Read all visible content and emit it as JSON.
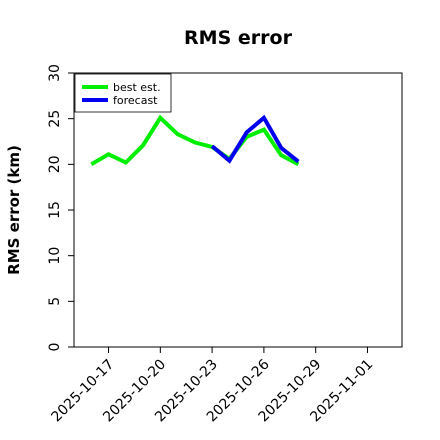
{
  "chart_data": {
    "type": "line",
    "title": "RMS error",
    "ylabel": "RMS error (km)",
    "xlabel": "",
    "ylim": [
      0,
      30
    ],
    "yticks": [
      0,
      5,
      10,
      15,
      20,
      25,
      30
    ],
    "xlim": [
      "2025-10-15",
      "2025-11-03"
    ],
    "x_tick_dates": [
      "2025-10-17",
      "2025-10-20",
      "2025-10-23",
      "2025-10-26",
      "2025-10-29",
      "2025-11-01"
    ],
    "x_tick_labels": [
      "2025-10-17",
      "2025-10-20",
      "2025-10-23",
      "2025-10-26",
      "2025-10-29",
      "2025-11-01"
    ],
    "x_tick_colors": [
      "#000000",
      "#000000",
      "#228B22",
      "#000000",
      "#000000",
      "#000000"
    ],
    "grid": false,
    "legend_position": "top-left",
    "series": [
      {
        "name": "best est.",
        "color": "#00ee00",
        "x": [
          "2025-10-16",
          "2025-10-17",
          "2025-10-18",
          "2025-10-19",
          "2025-10-20",
          "2025-10-21",
          "2025-10-22",
          "2025-10-23",
          "2025-10-24",
          "2025-10-25",
          "2025-10-26",
          "2025-10-27",
          "2025-10-28"
        ],
        "values": [
          20.0,
          21.1,
          20.2,
          22.1,
          25.1,
          23.3,
          22.4,
          21.9,
          20.6,
          23.0,
          23.8,
          21.0,
          20.0
        ]
      },
      {
        "name": "forecast",
        "color": "#0000ee",
        "x": [
          "2025-10-23",
          "2025-10-24",
          "2025-10-25",
          "2025-10-26",
          "2025-10-27",
          "2025-10-28"
        ],
        "values": [
          22.0,
          20.4,
          23.5,
          25.1,
          21.8,
          20.3
        ]
      }
    ]
  }
}
